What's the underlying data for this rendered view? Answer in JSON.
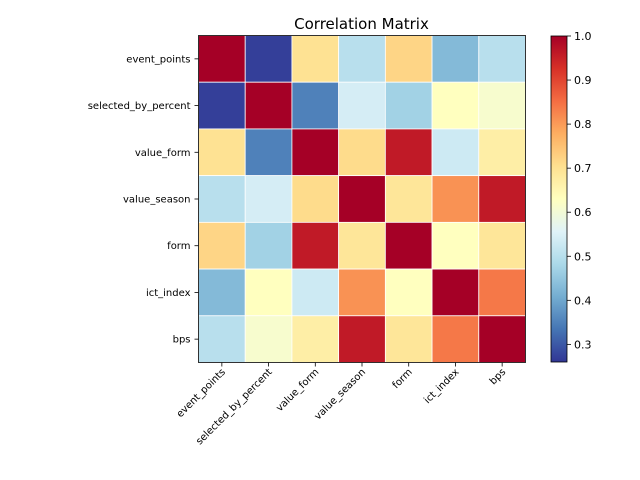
{
  "chart_data": {
    "type": "heatmap",
    "title": "Correlation Matrix",
    "xlabel": "",
    "ylabel": "",
    "variables": [
      "event_points",
      "selected_by_percent",
      "value_form",
      "value_season",
      "form",
      "ict_index",
      "bps"
    ],
    "matrix": [
      [
        1.0,
        0.27,
        0.7,
        0.5,
        0.72,
        0.43,
        0.5
      ],
      [
        0.27,
        1.0,
        0.35,
        0.54,
        0.47,
        0.63,
        0.61
      ],
      [
        0.7,
        0.35,
        1.0,
        0.71,
        0.96,
        0.53,
        0.67
      ],
      [
        0.5,
        0.54,
        0.71,
        1.0,
        0.69,
        0.81,
        0.96
      ],
      [
        0.72,
        0.47,
        0.96,
        0.69,
        1.0,
        0.63,
        0.69
      ],
      [
        0.43,
        0.63,
        0.53,
        0.81,
        0.63,
        1.0,
        0.84
      ],
      [
        0.5,
        0.61,
        0.67,
        0.96,
        0.69,
        0.84,
        1.0
      ]
    ],
    "colorbar": {
      "colormap": "RdYlBu_r",
      "vmin": 0.26,
      "vmax": 1.0,
      "ticks": [
        0.3,
        0.4,
        0.5,
        0.6,
        0.7,
        0.8,
        0.9,
        1.0
      ],
      "tick_labels": [
        "0.3",
        "0.4",
        "0.5",
        "0.6",
        "0.7",
        "0.8",
        "0.9",
        "1.0"
      ]
    },
    "grid": false,
    "legend": "colorbar-right"
  },
  "colors": {
    "colormap_stops": [
      "#313695",
      "#4575b4",
      "#74add1",
      "#abd9e9",
      "#e0f3f8",
      "#ffffbf",
      "#fee090",
      "#fdae61",
      "#f46d43",
      "#d73027",
      "#a50026"
    ],
    "cell_border": "#ffffff",
    "axis": "#000000"
  }
}
